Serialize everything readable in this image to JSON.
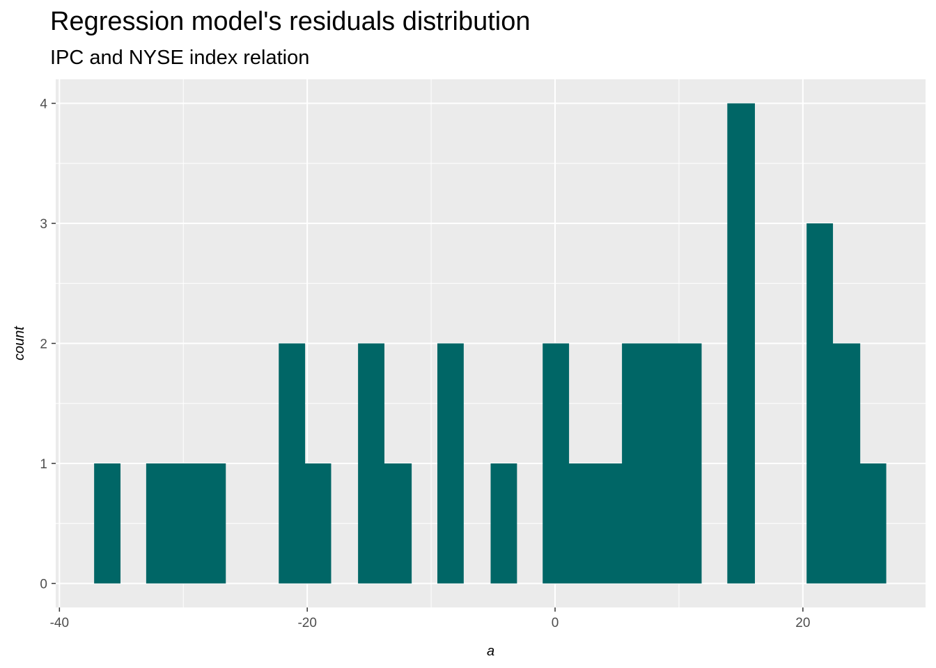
{
  "chart_data": {
    "type": "histogram",
    "title": "Regression model's residuals distribution",
    "subtitle": "IPC and NYSE index relation",
    "xlabel": "a",
    "ylabel": "count",
    "xlim": [
      -40.3,
      29.9
    ],
    "ylim": [
      -0.2,
      4.2
    ],
    "x_ticks": [
      -40,
      -20,
      0,
      20
    ],
    "x_tick_labels": [
      "-40",
      "-20",
      "0",
      "20"
    ],
    "y_ticks": [
      0,
      1,
      2,
      3,
      4
    ],
    "y_tick_labels": [
      "0",
      "1",
      "2",
      "3",
      "4"
    ],
    "bin_width": 2.13,
    "bins": [
      {
        "x0": -37.2,
        "x1": -35.1,
        "count": 1
      },
      {
        "x0": -33.0,
        "x1": -30.8,
        "count": 1
      },
      {
        "x0": -30.8,
        "x1": -28.7,
        "count": 1
      },
      {
        "x0": -28.7,
        "x1": -26.6,
        "count": 1
      },
      {
        "x0": -22.3,
        "x1": -20.2,
        "count": 2
      },
      {
        "x0": -20.2,
        "x1": -18.1,
        "count": 1
      },
      {
        "x0": -15.9,
        "x1": -13.8,
        "count": 2
      },
      {
        "x0": -13.8,
        "x1": -11.6,
        "count": 1
      },
      {
        "x0": -9.5,
        "x1": -7.4,
        "count": 2
      },
      {
        "x0": -5.2,
        "x1": -3.1,
        "count": 1
      },
      {
        "x0": -1.0,
        "x1": 1.1,
        "count": 2
      },
      {
        "x0": 1.1,
        "x1": 3.3,
        "count": 1
      },
      {
        "x0": 3.3,
        "x1": 5.4,
        "count": 1
      },
      {
        "x0": 5.4,
        "x1": 7.5,
        "count": 2
      },
      {
        "x0": 7.5,
        "x1": 9.7,
        "count": 2
      },
      {
        "x0": 9.7,
        "x1": 11.8,
        "count": 2
      },
      {
        "x0": 13.9,
        "x1": 16.1,
        "count": 4
      },
      {
        "x0": 20.3,
        "x1": 22.4,
        "count": 3
      },
      {
        "x0": 22.4,
        "x1": 24.6,
        "count": 2
      },
      {
        "x0": 24.6,
        "x1": 26.7,
        "count": 1
      }
    ],
    "bar_color": "#006666",
    "panel_background": "#ebebeb",
    "grid_color": "#ffffff",
    "grid": true,
    "legend": "none"
  }
}
